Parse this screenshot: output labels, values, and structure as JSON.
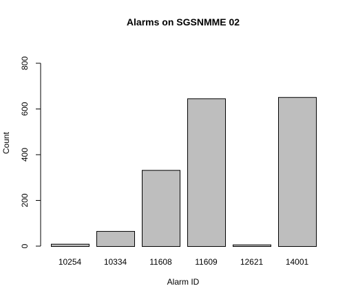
{
  "chart_data": {
    "type": "bar",
    "title": "Alarms on SGSNMME 02",
    "xlabel": "Alarm ID",
    "ylabel": "Count",
    "categories": [
      "10254",
      "10334",
      "11608",
      "11609",
      "12621",
      "14001"
    ],
    "values": [
      10,
      66,
      333,
      646,
      7,
      652
    ],
    "ylim": [
      0,
      800
    ],
    "yticks": [
      "0",
      "200",
      "400",
      "600",
      "800"
    ],
    "grid": false,
    "legend": "none",
    "bar_color": "#bebebe",
    "border_color": "#000000"
  }
}
